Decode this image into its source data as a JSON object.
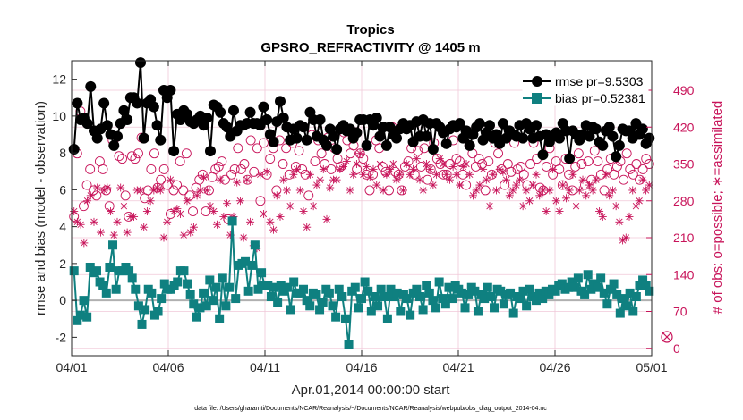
{
  "chart_data": {
    "type": "line",
    "title": "Tropics",
    "subtitle": "GPSRO_REFRACTIVITY @ 1405 m",
    "xlabel": "Apr.01,2014 00:00:00 start",
    "ylabel": "rmse and bias (model - observation)",
    "ylabel_right": "# of obs: o=possible; ∗=assimilated",
    "footnote": "data file: /Users/gharamti/Documents/NCAR/Reanalysis/~/Documents/NCAR/Reanalysis/webpub/obs_diag_output_2014-04.nc",
    "xlim": [
      0,
      30
    ],
    "ylim": [
      -3,
      13
    ],
    "ylim_right": [
      -14,
      546
    ],
    "x_tick_values": [
      0,
      5,
      10,
      15,
      20,
      25,
      30
    ],
    "x_tick_labels": [
      "04/01",
      "04/06",
      "04/11",
      "04/16",
      "04/21",
      "04/26",
      "05/01"
    ],
    "y_ticks": [
      -2,
      0,
      2,
      4,
      6,
      8,
      10,
      12
    ],
    "y_ticks_right": [
      0,
      70,
      140,
      210,
      280,
      350,
      420,
      490
    ],
    "grid": true,
    "legend_position": "top-right",
    "colors": {
      "rmse": "#000000",
      "bias": "#0f8080",
      "obs": "#c8145a",
      "zero_line": "#b0b0b0",
      "grid": "#f0c8d8",
      "axis": "#262626"
    },
    "series": [
      {
        "name": "rmse pr=9.5303",
        "marker": "circle",
        "values": [
          8.2,
          10.7,
          9.8,
          9.9,
          9.6,
          11.6,
          9.2,
          8.8,
          9.3,
          10.7,
          9.5,
          9.0,
          8.4,
          8.9,
          9.6,
          10.3,
          9.8,
          11.0,
          11.0,
          10.7,
          12.9,
          8.8,
          10.7,
          10.9,
          10.5,
          9.5,
          8.7,
          11.4,
          11.0,
          11.4,
          8.1,
          10.1,
          9.8,
          10.3,
          10.1,
          9.7,
          9.6,
          9.8,
          10.0,
          9.5,
          9.9,
          8.1,
          10.6,
          10.5,
          10.2,
          9.6,
          9.4,
          8.9,
          10.3,
          9.2,
          9.5,
          9.5,
          9.6,
          10.2,
          9.6,
          9.6,
          9.5,
          10.5,
          9.8,
          9.0,
          8.6,
          9.7,
          10.8,
          9.9,
          9.4,
          8.7,
          9.3,
          8.8,
          9.5,
          9.4,
          8.7,
          10.2,
          9.8,
          8.9,
          9.8,
          8.7,
          8.4,
          9.3,
          8.9,
          8.2,
          9.3,
          9.5,
          9.2,
          9.3,
          8.8,
          9.1,
          9.8,
          9.8,
          8.4,
          9.8,
          9.5,
          9.9,
          8.9,
          9.4,
          8.4,
          9.4,
          9.0,
          8.8,
          9.3,
          9.6,
          9.3,
          9.5,
          8.6,
          9.7,
          8.9,
          9.8,
          8.9,
          9.6,
          8.2,
          9.6,
          9.4,
          9.1,
          8.5,
          9.3,
          9.5,
          9.4,
          9.6,
          8.8,
          9.2,
          8.4,
          9.0,
          9.4,
          9.6,
          8.7,
          9.1,
          9.5,
          8.8,
          9.0,
          8.5,
          9.6,
          8.8,
          9.2,
          9.0,
          8.9,
          9.5,
          8.8,
          9.6,
          9.3,
          8.8,
          9.5,
          8.9,
          7.9,
          9.0,
          8.6,
          8.9,
          9.1,
          8.8,
          9.6,
          9.2,
          7.7,
          9.2,
          9.0,
          8.7,
          9.0,
          9.5,
          8.9,
          9.4,
          9.3,
          8.6,
          8.4,
          9.2,
          9.4,
          8.9,
          7.8,
          8.4,
          9.3,
          9.2,
          9.2,
          8.8,
          9.6,
          9.0,
          9.3,
          8.5,
          8.8
        ]
      },
      {
        "name": "bias pr=0.52381",
        "marker": "square",
        "values": [
          1.6,
          -1.1,
          -0.8,
          0.0,
          -0.9,
          1.8,
          1.5,
          1.6,
          1.0,
          0.8,
          0.4,
          1.8,
          3.0,
          0.6,
          1.6,
          1.6,
          1.8,
          1.6,
          1.2,
          0.6,
          -0.3,
          -1.3,
          -0.5,
          0.6,
          0.4,
          -0.8,
          -0.6,
          0.1,
          0.9,
          0.6,
          0.6,
          0.8,
          1.0,
          1.6,
          1.6,
          0.9,
          0.3,
          -0.2,
          -0.9,
          -0.4,
          0.4,
          -0.3,
          1.1,
          0.0,
          0.7,
          -1.0,
          1.2,
          -0.3,
          0.7,
          4.3,
          0.1,
          1.9,
          2.0,
          2.1,
          0.5,
          1.9,
          3.0,
          0.6,
          1.5,
          0.8,
          0.8,
          0.2,
          0.7,
          -0.1,
          0.8,
          0.5,
          0.7,
          -0.5,
          1.0,
          0.4,
          0.4,
          0.6,
          0.0,
          -0.3,
          0.4,
          0.3,
          -0.5,
          -0.1,
          0.6,
          0.4,
          -0.3,
          -0.9,
          0.6,
          0.2,
          -1.0,
          -2.4,
          0.5,
          0.7,
          -0.4,
          0.1,
          1.0,
          0.5,
          -0.6,
          0.2,
          -0.3,
          0.6,
          0.2,
          -1.0,
          0.6,
          0.2,
          0.4,
          -0.6,
          0.3,
          0.1,
          -0.8,
          0.4,
          0.6,
          0.2,
          -0.5,
          0.8,
          0.4,
          0.0,
          -0.4,
          1.0,
          0.1,
          -0.2,
          0.7,
          0.1,
          0.8,
          0.6,
          0.4,
          -0.4,
          0.3,
          0.7,
          0.5,
          -0.6,
          0.3,
          0.1,
          0.7,
          0.2,
          -0.4,
          0.6,
          0.5,
          -0.2,
          0.3,
          0.4,
          -0.7,
          0.2,
          0.1,
          0.5,
          -0.3,
          0.6,
          0.2,
          0.0,
          0.4,
          0.1,
          0.5,
          0.3,
          0.6,
          0.5,
          0.8,
          0.9,
          0.6,
          0.7,
          1.0,
          0.7,
          1.2,
          0.5,
          0.3,
          1.4,
          0.6,
          0.9,
          0.7,
          1.2,
          0.4,
          -0.2,
          0.6,
          0.9,
          0.3,
          -0.7,
          0.1,
          -0.3,
          0.4,
          -0.6,
          0.2,
          0.8,
          1.1,
          0.8,
          0.5
        ]
      },
      {
        "name": "possible",
        "marker": "open-circle",
        "axis": "right",
        "values": [
          250,
          370,
          450,
          270,
          310,
          340,
          300,
          290,
          355,
          340,
          300,
          270,
          395,
          400,
          365,
          360,
          290,
          250,
          365,
          360,
          370,
          400,
          285,
          300,
          340,
          370,
          305,
          320,
          340,
          310,
          255,
          300,
          310,
          355,
          300,
          370,
          290,
          260,
          305,
          320,
          330,
          260,
          300,
          325,
          340,
          345,
          355,
          320,
          245,
          330,
          340,
          380,
          340,
          350,
          320,
          395,
          335,
          380,
          280,
          390,
          330,
          360,
          380,
          300,
          395,
          350,
          380,
          330,
          390,
          345,
          375,
          340,
          330,
          290,
          405,
          355,
          395,
          370,
          350,
          400,
          340,
          380,
          360,
          345,
          410,
          395,
          370,
          385,
          340,
          370,
          360,
          330,
          300,
          330,
          395,
          380,
          345,
          335,
          300,
          420,
          335,
          330,
          300,
          345,
          355,
          380,
          330,
          375,
          345,
          380,
          320,
          340,
          390,
          360,
          350,
          330,
          330,
          350,
          395,
          360,
          355,
          330,
          310,
          385,
          370,
          345,
          360,
          350,
          300,
          355,
          330,
          390,
          370,
          340,
          310,
          350,
          335,
          390,
          340,
          345,
          330,
          310,
          350,
          390,
          360,
          305,
          300,
          345,
          380,
          330,
          355,
          340,
          310,
          360,
          330,
          300,
          345,
          370,
          350,
          310,
          355,
          320,
          375,
          355,
          330,
          300,
          340,
          360,
          330,
          345,
          355,
          320,
          370,
          340,
          330,
          350,
          320,
          340,
          360,
          350
        ]
      },
      {
        "name": "assimilated",
        "marker": "asterisk",
        "axis": "right",
        "values": [
          260,
          240,
          235,
          200,
          280,
          290,
          240,
          305,
          220,
          300,
          305,
          260,
          215,
          240,
          305,
          270,
          220,
          250,
          250,
          300,
          300,
          230,
          260,
          280,
          300,
          305,
          300,
          210,
          240,
          320,
          260,
          265,
          255,
          215,
          280,
          220,
          230,
          290,
          300,
          325,
          300,
          270,
          260,
          235,
          320,
          250,
          275,
          215,
          250,
          315,
          280,
          210,
          320,
          240,
          195,
          190,
          330,
          255,
          335,
          240,
          225,
          290,
          250,
          320,
          300,
          270,
          330,
          340,
          300,
          260,
          230,
          330,
          270,
          310,
          320,
          340,
          245,
          305,
          320,
          320,
          340,
          345,
          355,
          300,
          330,
          350,
          370,
          330,
          345,
          325,
          340,
          310,
          350,
          300,
          330,
          340,
          350,
          320,
          330,
          300,
          350,
          330,
          340,
          360,
          320,
          300,
          350,
          340,
          310,
          330,
          360,
          350,
          330,
          320,
          345,
          330,
          310,
          345,
          350,
          330,
          290,
          300,
          310,
          340,
          320,
          270,
          330,
          300,
          340,
          335,
          320,
          290,
          300,
          310,
          320,
          270,
          300,
          280,
          310,
          330,
          290,
          300,
          260,
          300,
          340,
          280,
          260,
          310,
          285,
          300,
          330,
          270,
          300,
          320,
          290,
          310,
          300,
          320,
          260,
          250,
          330,
          290,
          300,
          270,
          240,
          205,
          210,
          250,
          300,
          270,
          280,
          320,
          300,
          310
        ]
      }
    ],
    "legend": [
      "rmse pr=9.5303",
      "bias pr=0.52381"
    ],
    "annotations": [
      "⊗ at 0 on right axis"
    ]
  }
}
